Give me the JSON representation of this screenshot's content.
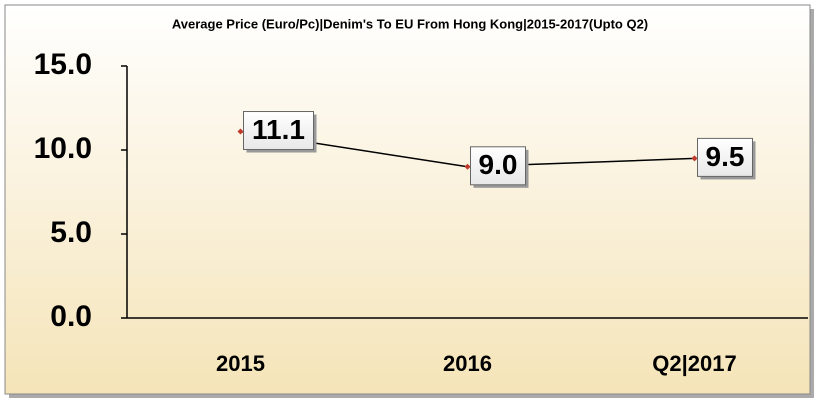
{
  "chart_data": {
    "type": "line",
    "title": "Average Price (Euro/Pc)|Denim's To EU From Hong Kong|2015-2017(Upto Q2)",
    "categories": [
      "2015",
      "2016",
      "Q2|2017"
    ],
    "values": [
      11.1,
      9.0,
      9.5
    ],
    "value_labels": [
      "11.1",
      "9.0",
      "9.5"
    ],
    "color": "#000000",
    "marker_color": "#c0392b",
    "ylim": [
      0,
      15
    ],
    "yticks": [
      {
        "value": 0,
        "label": "0.0"
      },
      {
        "value": 5,
        "label": "5.0"
      },
      {
        "value": 10,
        "label": "10.0"
      },
      {
        "value": 15,
        "label": "15.0"
      }
    ]
  }
}
